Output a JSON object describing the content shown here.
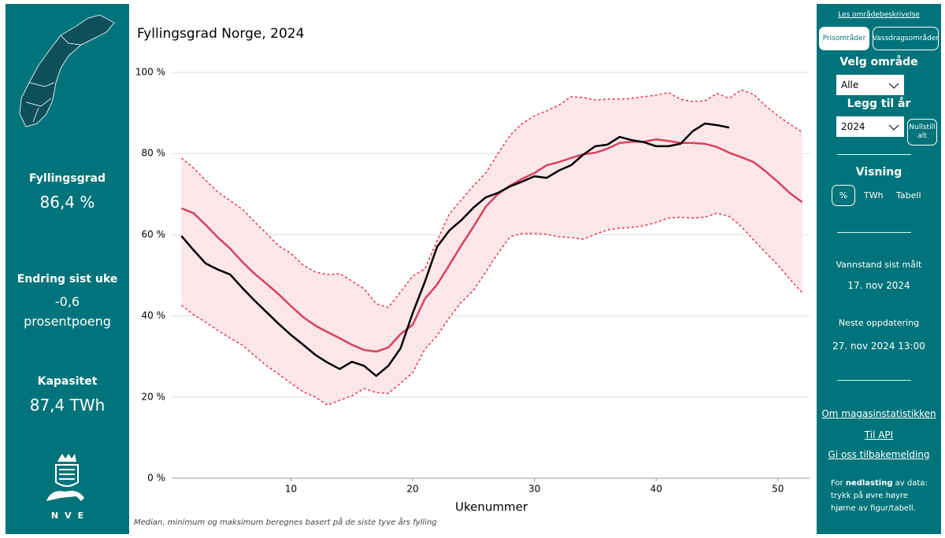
{
  "left_panel": {
    "stats": [
      {
        "label": "Fyllingsgrad",
        "value": "86,4 %"
      },
      {
        "label": "Endring sist uke",
        "value": "-0,6",
        "unit": "prosentpoeng"
      },
      {
        "label": "Kapasitet",
        "value": "87,4 TWh"
      }
    ],
    "logo_text": "NVE"
  },
  "right_panel": {
    "description_link": "Les områdebeskrivelse",
    "area_tabs": [
      "Prisområder",
      "Vassdragsområder"
    ],
    "area_label": "Velg område",
    "area_value": "Alle",
    "year_label": "Legg til år",
    "year_value": "2024",
    "reset_button": "Nullstill alt",
    "view_label": "Visning",
    "view_options": [
      "%",
      "TWh",
      "Tabell"
    ],
    "measured_label": "Vannstand sist målt",
    "measured_date": "17. nov 2024",
    "next_label": "Neste oppdatering",
    "next_date": "27. nov 2024 13:00",
    "links": [
      "Om magasinstatistikken",
      "Til API",
      "Gi oss tilbakemelding"
    ],
    "download_note": [
      "For ",
      "nedlasting",
      " av data: trykk på øvre høyre hjørne av figur/tabell."
    ]
  },
  "chart_data": {
    "type": "line",
    "title": "Fyllingsgrad Norge, 2024",
    "x_label": "Ukenummer",
    "footnote": "Median, minimum og maksimum beregnes basert på de siste tyve års fylling",
    "x": [
      1,
      2,
      3,
      4,
      5,
      6,
      7,
      8,
      9,
      10,
      11,
      12,
      13,
      14,
      15,
      16,
      17,
      18,
      19,
      20,
      21,
      22,
      23,
      24,
      25,
      26,
      27,
      28,
      29,
      30,
      31,
      32,
      33,
      34,
      35,
      36,
      37,
      38,
      39,
      40,
      41,
      42,
      43,
      44,
      45,
      46,
      47,
      48,
      49,
      50,
      51,
      52
    ],
    "xlim": [
      0.2,
      52.6
    ],
    "xticks": [
      10,
      20,
      30,
      40,
      50
    ],
    "ylim": [
      0,
      100
    ],
    "yticks": [
      {
        "value": 0,
        "label": "0 %"
      },
      {
        "value": 20,
        "label": "20 %"
      },
      {
        "value": 40,
        "label": "40 %"
      },
      {
        "value": 60,
        "label": "60 %"
      },
      {
        "value": 80,
        "label": "80 %"
      },
      {
        "value": 100,
        "label": "100 %"
      }
    ],
    "grid": true,
    "band_color": "#fbe6ea",
    "series": [
      {
        "color": "#e8334f",
        "dashed": true,
        "values": [
          78.9,
          76.4,
          73.4,
          70.5,
          68.4,
          66.3,
          63.2,
          60.3,
          57.2,
          55.4,
          52.5,
          50.8,
          50.2,
          50.4,
          48.6,
          46.7,
          43.0,
          42.1,
          45.9,
          49.8,
          51.6,
          58.5,
          65.1,
          68.6,
          72.1,
          75.2,
          80.0,
          84.5,
          87.4,
          89.3,
          90.5,
          91.9,
          94.0,
          93.8,
          93.2,
          93.4,
          93.4,
          93.6,
          94.0,
          94.4,
          95.0,
          93.4,
          92.8,
          93.0,
          94.8,
          93.6,
          95.7,
          94.6,
          91.7,
          89.3,
          87.2,
          85.3
        ]
      },
      {
        "color": "#d9415e",
        "dashed": false,
        "values": [
          66.5,
          65.3,
          62.4,
          59.3,
          56.6,
          53.3,
          50.4,
          47.9,
          45.3,
          42.4,
          39.7,
          37.6,
          36.0,
          34.5,
          32.9,
          31.6,
          31.2,
          32.2,
          35.5,
          37.8,
          44.2,
          47.7,
          52.5,
          57.4,
          62.0,
          66.9,
          70.0,
          72.1,
          73.8,
          75.2,
          77.1,
          77.9,
          78.9,
          79.8,
          80.2,
          81.2,
          82.6,
          82.9,
          82.9,
          83.5,
          83.1,
          82.6,
          82.6,
          82.4,
          81.6,
          80.2,
          79.1,
          77.9,
          75.6,
          73.0,
          70.2,
          68.0
        ]
      },
      {
        "color": "#e8334f",
        "dashed": true,
        "values": [
          42.6,
          40.3,
          38.4,
          36.4,
          34.5,
          32.8,
          30.2,
          27.7,
          25.6,
          23.4,
          21.3,
          20.0,
          18.0,
          19.2,
          20.3,
          22.1,
          21.1,
          20.9,
          23.4,
          26.0,
          31.8,
          35.1,
          39.5,
          43.4,
          46.3,
          50.8,
          55.4,
          59.5,
          60.3,
          60.3,
          60.1,
          59.5,
          59.3,
          58.9,
          60.1,
          61.2,
          61.6,
          61.8,
          62.2,
          63.0,
          64.1,
          64.3,
          64.1,
          64.3,
          65.3,
          64.5,
          62.0,
          58.7,
          55.6,
          52.5,
          49.0,
          45.7
        ]
      },
      {
        "color": "#000000",
        "dashed": false,
        "values": [
          59.7,
          56.2,
          52.9,
          51.4,
          50.2,
          46.9,
          43.8,
          40.9,
          38.0,
          35.3,
          32.9,
          30.4,
          28.5,
          26.9,
          28.7,
          27.7,
          25.2,
          27.7,
          32.0,
          40.7,
          48.4,
          57.0,
          61.0,
          63.6,
          66.7,
          69.2,
          70.3,
          71.9,
          73.1,
          74.4,
          74.0,
          75.8,
          77.1,
          79.7,
          81.8,
          82.2,
          84.1,
          83.3,
          82.8,
          81.8,
          81.8,
          82.4,
          85.5,
          87.4,
          87.0,
          86.4,
          null,
          null,
          null,
          null,
          null,
          null
        ]
      }
    ]
  }
}
